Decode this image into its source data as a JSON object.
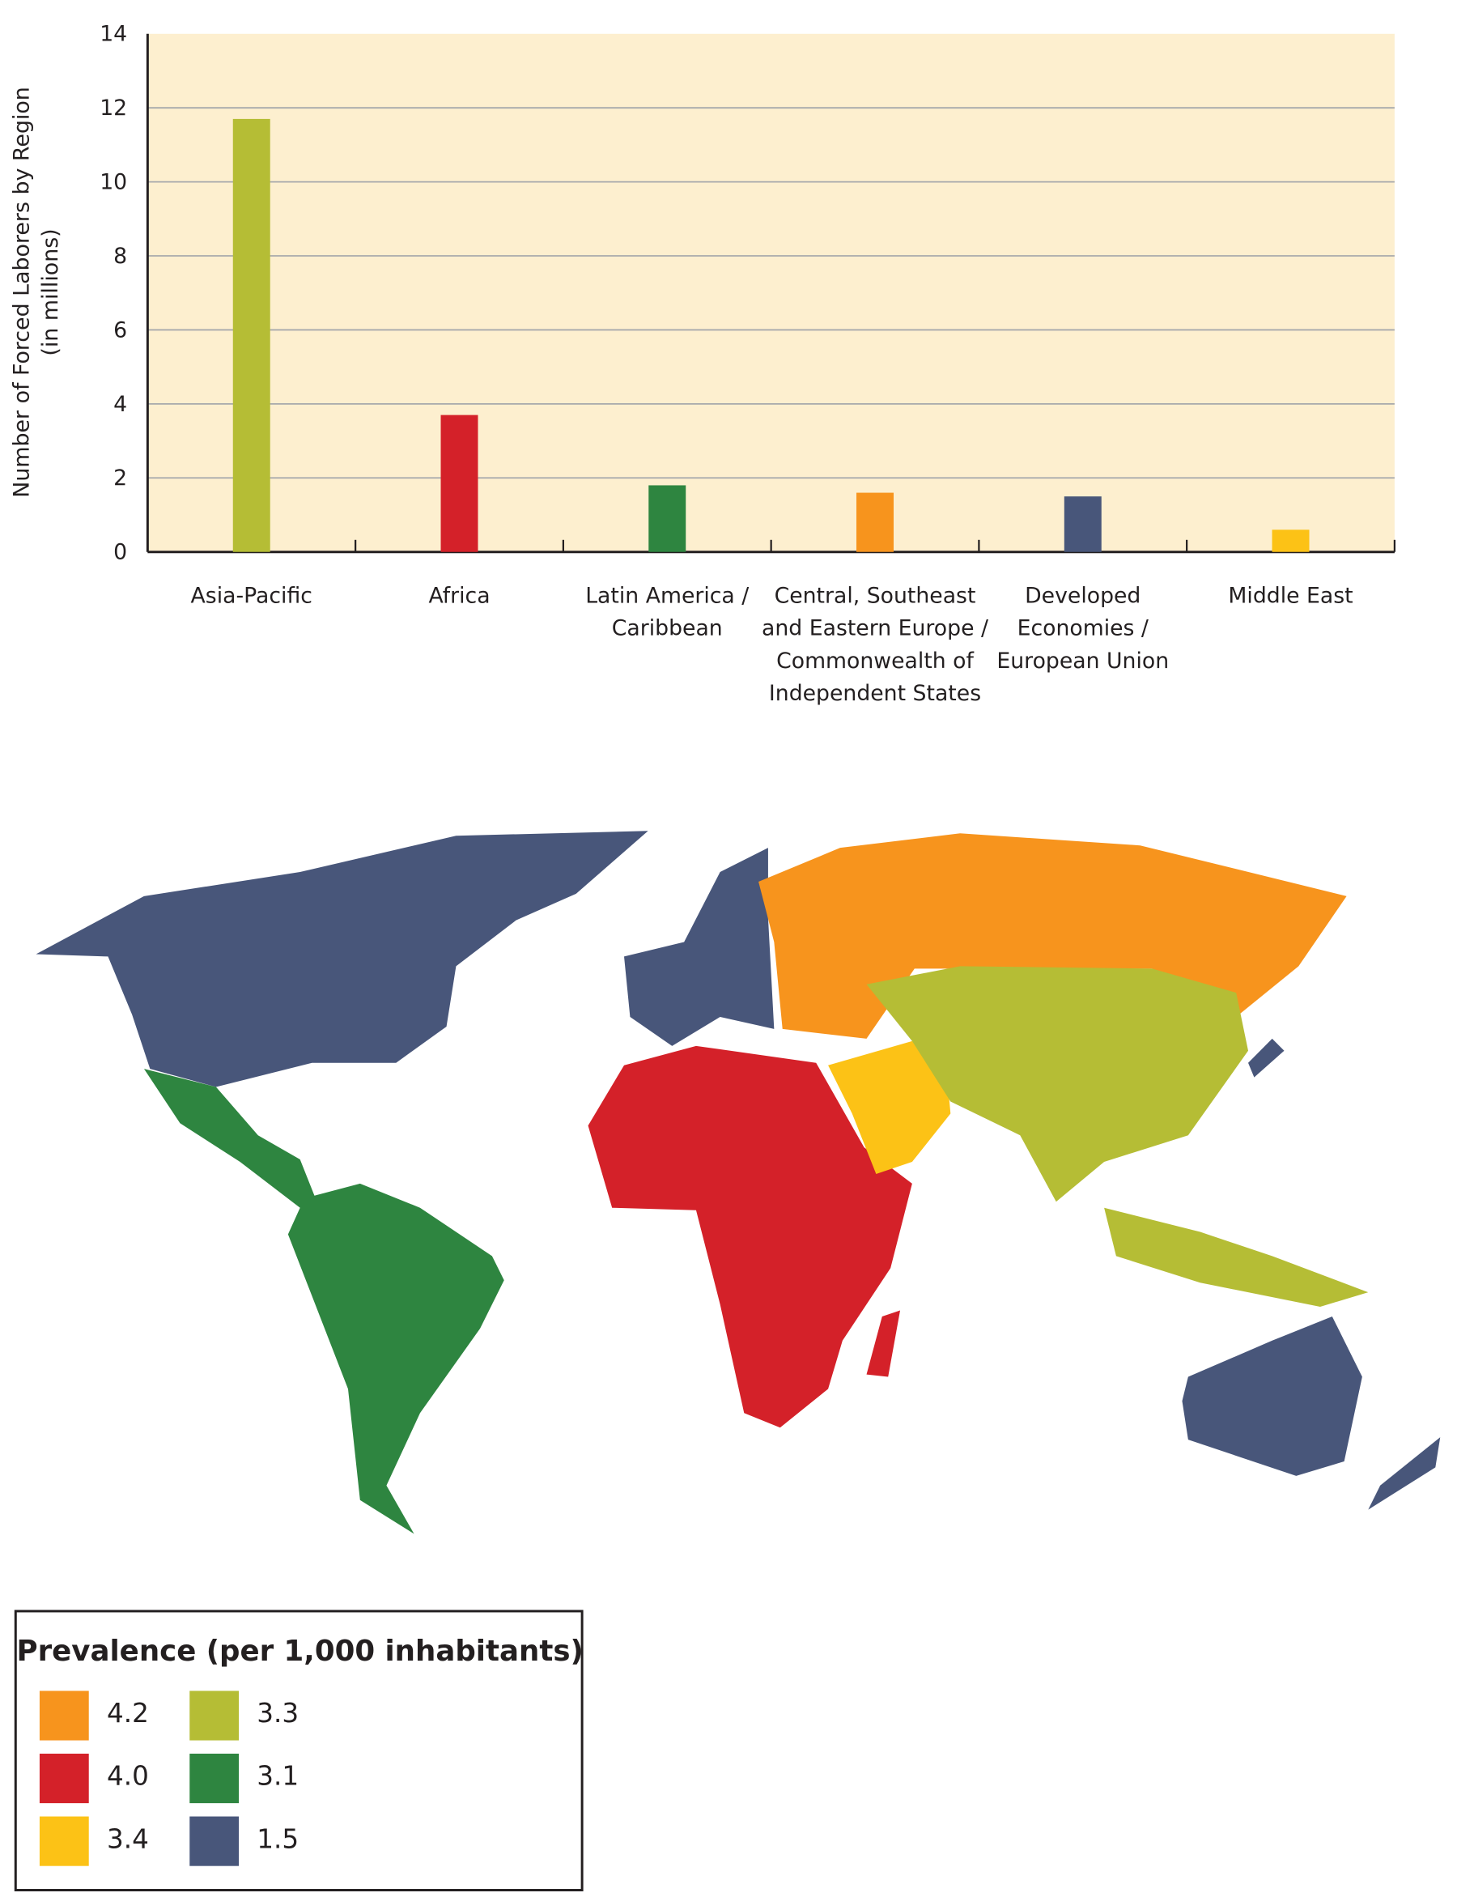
{
  "chart_data": [
    {
      "type": "bar",
      "y_label": "Number of Forced Laborers by Region",
      "y_label_note": "(in millions)",
      "categories": [
        "Asia-Pacific",
        "Africa",
        "Latin America / Caribbean",
        "Central, Southeast and Eastern Europe / Commonwealth of Independent States",
        "Developed Economies / European Union",
        "Middle East"
      ],
      "values": [
        11.7,
        3.7,
        1.8,
        1.6,
        1.5,
        0.6
      ],
      "colors": [
        "#b5bd35",
        "#d42129",
        "#2e8540",
        "#f7941d",
        "#48567a",
        "#fcc216"
      ],
      "ylim": [
        0,
        14
      ],
      "yticks": [
        0,
        2,
        4,
        6,
        8,
        10,
        12,
        14
      ],
      "grid": true
    },
    {
      "type": "map",
      "legend_title": "Prevalence (per 1,000 inhabitants)",
      "legend": [
        {
          "value": 4.2,
          "color": "#f7941d"
        },
        {
          "value": 4,
          "label": "4.0",
          "color": "#d42129"
        },
        {
          "value": 3.4,
          "color": "#fcc216"
        },
        {
          "value": 3.3,
          "color": "#b5bd35"
        },
        {
          "value": 3.1,
          "color": "#2e8540"
        },
        {
          "value": 1.5,
          "color": "#48567a"
        }
      ]
    }
  ]
}
